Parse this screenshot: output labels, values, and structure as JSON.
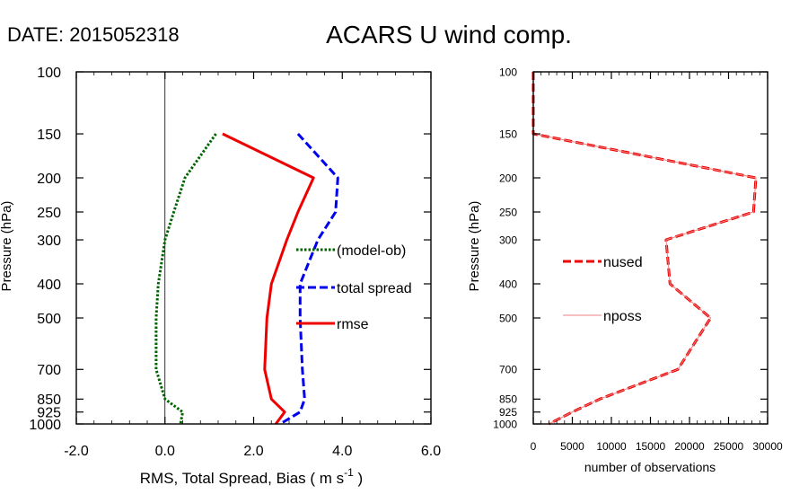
{
  "header": {
    "date_label": "DATE: 2015052318",
    "title": "ACARS U wind comp."
  },
  "chart_data": [
    {
      "type": "line",
      "y_scale": "log",
      "ylabel": "Pressure (hPa)",
      "xlabel": "RMS, Total Spread, Bias ( m s",
      "xlabel_superscript": "-1",
      "xlabel_suffix": " )",
      "xlim": [
        -2,
        6
      ],
      "ylim": [
        1000,
        100
      ],
      "x_ticks": [
        -2,
        0,
        2,
        4,
        6
      ],
      "x_tick_labels": [
        "-2.0",
        "0.0",
        "2.0",
        "4.0",
        "6.0"
      ],
      "y_ticks": [
        100,
        150,
        200,
        250,
        300,
        400,
        500,
        700,
        850,
        925,
        1000
      ],
      "y_tick_labels": [
        "100",
        "150",
        "200",
        "250",
        "300",
        "400",
        "500",
        "700",
        "850",
        "925",
        "1000"
      ],
      "zero_line": 0,
      "series": [
        {
          "name": "(model-ob)",
          "color": "#006400",
          "style": "dotted",
          "points": [
            [
              1.15,
              150
            ],
            [
              0.45,
              200
            ],
            [
              0.2,
              250
            ],
            [
              0.0,
              300
            ],
            [
              -0.15,
              400
            ],
            [
              -0.2,
              500
            ],
            [
              -0.2,
              700
            ],
            [
              0.0,
              850
            ],
            [
              0.4,
              925
            ],
            [
              0.35,
              1000
            ]
          ]
        },
        {
          "name": "total spread",
          "color": "#0000ee",
          "style": "dashed",
          "points": [
            [
              3.0,
              150
            ],
            [
              3.9,
              200
            ],
            [
              3.85,
              250
            ],
            [
              3.45,
              300
            ],
            [
              3.05,
              400
            ],
            [
              3.05,
              500
            ],
            [
              3.1,
              700
            ],
            [
              3.15,
              850
            ],
            [
              3.05,
              925
            ],
            [
              2.6,
              1000
            ]
          ]
        },
        {
          "name": "rmse",
          "color": "#ee0000",
          "style": "solid",
          "points": [
            [
              1.3,
              150
            ],
            [
              3.35,
              200
            ],
            [
              3.0,
              250
            ],
            [
              2.75,
              300
            ],
            [
              2.4,
              400
            ],
            [
              2.3,
              500
            ],
            [
              2.25,
              700
            ],
            [
              2.4,
              850
            ],
            [
              2.7,
              925
            ],
            [
              2.5,
              1000
            ]
          ]
        }
      ]
    },
    {
      "type": "line",
      "y_scale": "log",
      "ylabel": "Pressure (hPa)",
      "xlabel": "number of observations",
      "xlim": [
        0,
        30000
      ],
      "ylim": [
        1000,
        100
      ],
      "x_ticks": [
        0,
        5000,
        10000,
        15000,
        20000,
        25000,
        30000
      ],
      "x_tick_labels": [
        "0",
        "5000",
        "10000",
        "15000",
        "20000",
        "25000",
        "30000"
      ],
      "y_ticks": [
        100,
        150,
        200,
        250,
        300,
        400,
        500,
        700,
        850,
        925,
        1000
      ],
      "y_tick_labels": [
        "100",
        "150",
        "200",
        "250",
        "300",
        "400",
        "500",
        "700",
        "850",
        "925",
        "1000"
      ],
      "series": [
        {
          "name": "nused",
          "color": "#ee0000",
          "style": "dashed",
          "points": [
            [
              0,
              100
            ],
            [
              0,
              150
            ],
            [
              28500,
              200
            ],
            [
              28200,
              250
            ],
            [
              17000,
              300
            ],
            [
              17500,
              400
            ],
            [
              22700,
              500
            ],
            [
              18500,
              700
            ],
            [
              8500,
              850
            ],
            [
              5000,
              925
            ],
            [
              2000,
              1000
            ]
          ]
        },
        {
          "name": "nposs",
          "color": "#f08080",
          "style": "solid",
          "points": [
            [
              0,
              100
            ],
            [
              0,
              150
            ],
            [
              28500,
              200
            ],
            [
              28200,
              250
            ],
            [
              17000,
              300
            ],
            [
              17500,
              400
            ],
            [
              22700,
              500
            ],
            [
              18500,
              700
            ],
            [
              8500,
              850
            ],
            [
              5000,
              925
            ],
            [
              2000,
              1000
            ]
          ]
        }
      ]
    }
  ]
}
